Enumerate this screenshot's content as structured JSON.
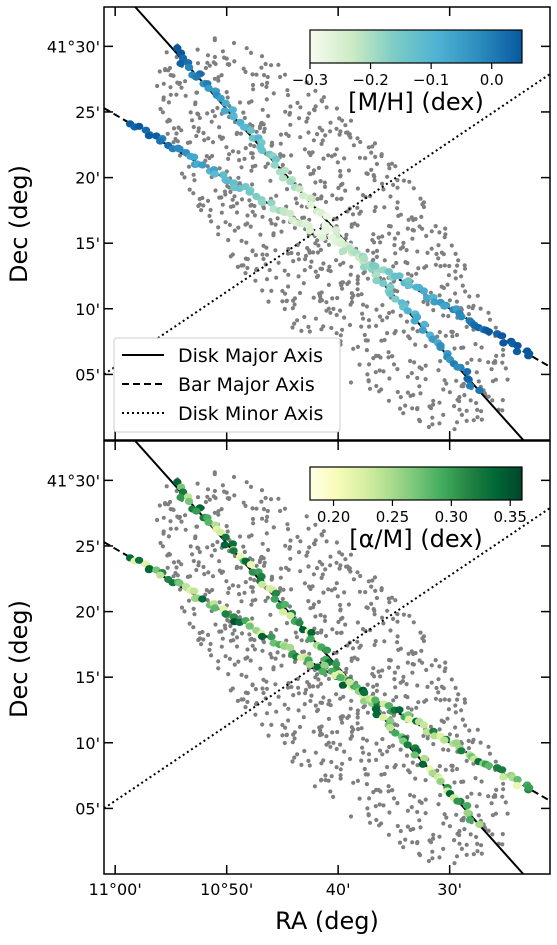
{
  "chart_data": {
    "type": "scatter",
    "xlabel": "RA (deg)",
    "ylabel": "Dec (deg)",
    "xlim": [
      11.0167,
      10.35
    ],
    "ylim": [
      41.0,
      41.55
    ],
    "x_ticks": [
      11.0,
      10.8333,
      10.6667,
      10.5
    ],
    "x_tick_labels": [
      "11°00'",
      "10°50'",
      "40'",
      "30'"
    ],
    "y_ticks": [
      41.0833,
      41.1667,
      41.25,
      41.3333,
      41.4167,
      41.5
    ],
    "y_tick_labels": [
      "05'",
      "10'",
      "15'",
      "20'",
      "25'",
      "41°30'"
    ],
    "legend": {
      "placement": "lower-left (top panel)",
      "entries": [
        {
          "label": "Disk Major Axis",
          "style": "solid"
        },
        {
          "label": "Bar Major Axis",
          "style": "dashed"
        },
        {
          "label": "Disk Minor Axis",
          "style": "dotted"
        }
      ]
    },
    "axis_lines": {
      "disk_major": [
        [
          10.97,
          41.55
        ],
        [
          10.39,
          41.0
        ]
      ],
      "bar_major": [
        [
          11.0167,
          41.4215
        ],
        [
          10.35,
          41.093
        ]
      ],
      "disk_minor": [
        [
          11.0167,
          41.0834
        ],
        [
          10.35,
          41.4648
        ]
      ]
    },
    "background_points": {
      "color": "#7f7f7f",
      "description": "unlabeled field sources"
    },
    "panels": [
      {
        "name": "metallicity",
        "colorbar": {
          "label": "[M/H] (dex)",
          "range": [
            -0.3,
            0.05
          ],
          "ticks": [
            -0.3,
            -0.2,
            -0.1,
            0.0
          ],
          "tick_labels": [
            "−0.3",
            "−0.2",
            "−0.1",
            "0.0"
          ],
          "colormap": [
            "#f7fcf0",
            "#ccebc5",
            "#7bccc4",
            "#4eb3d3",
            "#2b8cbe",
            "#08589e"
          ]
        },
        "value_range": [
          -0.3,
          0.05
        ]
      },
      {
        "name": "alpha",
        "colorbar": {
          "label": "[α/M] (dex)",
          "range": [
            0.18,
            0.36
          ],
          "ticks": [
            0.2,
            0.25,
            0.3,
            0.35
          ],
          "tick_labels": [
            "0.20",
            "0.25",
            "0.30",
            "0.35"
          ],
          "colormap": [
            "#ffffe5",
            "#f7fcb9",
            "#d9f0a3",
            "#addd8e",
            "#78c679",
            "#41ab5d",
            "#238443",
            "#006837",
            "#004529"
          ]
        },
        "value_range": [
          0.18,
          0.36
        ]
      }
    ]
  }
}
